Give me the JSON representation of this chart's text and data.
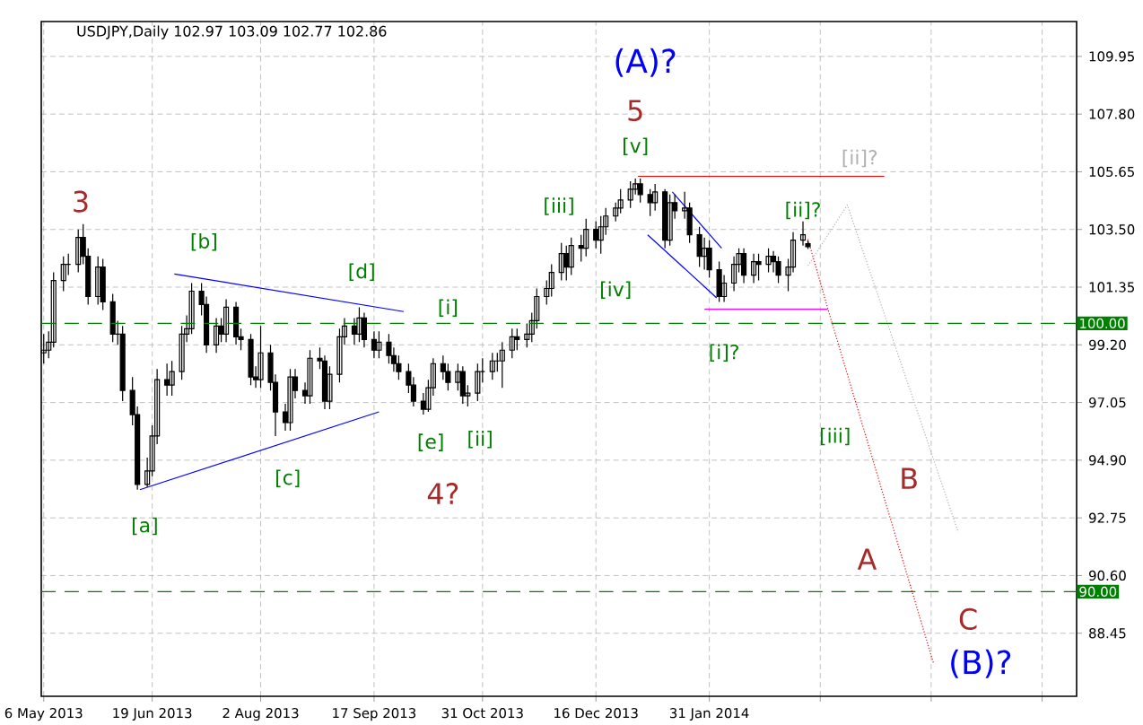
{
  "chart_data": {
    "type": "candlestick",
    "title": "USDJPY,Daily 102.97 103.09 102.77 102.86",
    "color": "#000000",
    "x": [
      "2013-05-06",
      "2013-05-08",
      "2013-05-10",
      "2013-05-14",
      "2013-05-16",
      "2013-05-20",
      "2013-05-22",
      "2013-05-24",
      "2013-05-28",
      "2013-05-30",
      "2013-06-03",
      "2013-06-05",
      "2013-06-07",
      "2013-06-11",
      "2013-06-13",
      "2013-06-17",
      "2013-06-19",
      "2013-06-21",
      "2013-06-25",
      "2013-06-27",
      "2013-07-01",
      "2013-07-03",
      "2013-07-05",
      "2013-07-09",
      "2013-07-11",
      "2013-07-15",
      "2013-07-17",
      "2013-07-19",
      "2013-07-23",
      "2013-07-25",
      "2013-07-29",
      "2013-07-31",
      "2013-08-02",
      "2013-08-06",
      "2013-08-08",
      "2013-08-12",
      "2013-08-14",
      "2013-08-16",
      "2013-08-20",
      "2013-08-22",
      "2013-08-26",
      "2013-08-28",
      "2013-08-30",
      "2013-09-03",
      "2013-09-05",
      "2013-09-09",
      "2013-09-11",
      "2013-09-13",
      "2013-09-17",
      "2013-09-19",
      "2013-09-23",
      "2013-09-25",
      "2013-09-27",
      "2013-10-01",
      "2013-10-03",
      "2013-10-07",
      "2013-10-09",
      "2013-10-11",
      "2013-10-15",
      "2013-10-17",
      "2013-10-21",
      "2013-10-23",
      "2013-10-25",
      "2013-10-29",
      "2013-10-31",
      "2013-11-04",
      "2013-11-06",
      "2013-11-08",
      "2013-11-12",
      "2013-11-14",
      "2013-11-18",
      "2013-11-20",
      "2013-11-22",
      "2013-11-26",
      "2013-11-28",
      "2013-12-02",
      "2013-12-04",
      "2013-12-06",
      "2013-12-10",
      "2013-12-12",
      "2013-12-16",
      "2013-12-18",
      "2013-12-20",
      "2013-12-24",
      "2013-12-26",
      "2013-12-30",
      "2014-01-01",
      "2014-01-03",
      "2014-01-07",
      "2014-01-09",
      "2014-01-13",
      "2014-01-15",
      "2014-01-17",
      "2014-01-21",
      "2014-01-23",
      "2014-01-27",
      "2014-01-29",
      "2014-01-31",
      "2014-02-04",
      "2014-02-06",
      "2014-02-10",
      "2014-02-12",
      "2014-02-14",
      "2014-02-18",
      "2014-02-20",
      "2014-02-24",
      "2014-02-26",
      "2014-02-28",
      "2014-03-04",
      "2014-03-06",
      "2014-03-10",
      "2014-03-12"
    ],
    "ohlc": [
      [
        98.9,
        99.6,
        98.5,
        99.0
      ],
      [
        99.0,
        99.7,
        98.7,
        99.3
      ],
      [
        99.3,
        101.9,
        99.1,
        101.6
      ],
      [
        101.6,
        102.5,
        101.2,
        102.2
      ],
      [
        102.2,
        102.6,
        101.8,
        102.2
      ],
      [
        102.2,
        103.5,
        101.9,
        103.2
      ],
      [
        103.2,
        103.7,
        102.2,
        102.5
      ],
      [
        102.5,
        102.8,
        100.7,
        101.0
      ],
      [
        101.0,
        102.5,
        100.7,
        102.1
      ],
      [
        102.1,
        102.4,
        100.5,
        100.8
      ],
      [
        100.8,
        101.1,
        99.3,
        99.6
      ],
      [
        99.6,
        100.1,
        99.2,
        99.6
      ],
      [
        99.6,
        99.9,
        97.1,
        97.5
      ],
      [
        97.5,
        98.0,
        96.2,
        96.6
      ],
      [
        96.6,
        96.9,
        93.8,
        94.0
      ],
      [
        94.0,
        95.0,
        93.9,
        94.5
      ],
      [
        94.5,
        96.2,
        94.3,
        95.8
      ],
      [
        95.8,
        98.3,
        95.5,
        97.9
      ],
      [
        97.9,
        98.5,
        97.3,
        97.7
      ],
      [
        97.7,
        98.6,
        97.3,
        98.2
      ],
      [
        98.2,
        99.9,
        97.9,
        99.6
      ],
      [
        99.6,
        100.3,
        99.3,
        99.8
      ],
      [
        99.8,
        101.5,
        99.6,
        101.2
      ],
      [
        101.2,
        101.5,
        100.3,
        100.7
      ],
      [
        100.7,
        101.0,
        98.9,
        99.2
      ],
      [
        99.2,
        100.2,
        98.9,
        99.9
      ],
      [
        99.9,
        100.2,
        99.3,
        99.6
      ],
      [
        99.6,
        100.9,
        99.3,
        100.6
      ],
      [
        100.6,
        100.8,
        99.2,
        99.5
      ],
      [
        99.5,
        99.8,
        99.0,
        99.4
      ],
      [
        99.4,
        99.6,
        97.7,
        98.0
      ],
      [
        98.0,
        98.4,
        97.6,
        97.9
      ],
      [
        97.9,
        99.9,
        97.6,
        98.9
      ],
      [
        98.9,
        99.2,
        97.5,
        97.8
      ],
      [
        97.8,
        98.1,
        95.8,
        96.7
      ],
      [
        96.7,
        97.0,
        96.0,
        96.3
      ],
      [
        96.3,
        98.3,
        96.0,
        98.0
      ],
      [
        98.0,
        98.3,
        97.2,
        97.5
      ],
      [
        97.5,
        97.8,
        97.0,
        97.3
      ],
      [
        97.3,
        99.0,
        97.0,
        98.7
      ],
      [
        98.7,
        99.1,
        98.3,
        98.6
      ],
      [
        98.6,
        98.8,
        96.8,
        97.1
      ],
      [
        97.1,
        98.4,
        96.8,
        98.1
      ],
      [
        98.1,
        99.8,
        97.8,
        99.5
      ],
      [
        99.5,
        100.2,
        99.2,
        99.9
      ],
      [
        99.9,
        100.2,
        99.2,
        99.6
      ],
      [
        99.6,
        100.6,
        99.3,
        100.2
      ],
      [
        100.2,
        100.4,
        99.1,
        99.4
      ],
      [
        99.4,
        99.7,
        98.7,
        99.0
      ],
      [
        99.0,
        99.7,
        98.7,
        99.3
      ],
      [
        99.3,
        99.6,
        98.5,
        98.8
      ],
      [
        98.8,
        99.1,
        98.2,
        98.5
      ],
      [
        98.5,
        98.8,
        97.9,
        98.2
      ],
      [
        98.2,
        98.5,
        97.4,
        97.7
      ],
      [
        97.7,
        98.0,
        96.9,
        97.1
      ],
      [
        97.1,
        97.4,
        96.6,
        96.8
      ],
      [
        96.8,
        97.9,
        96.7,
        97.6
      ],
      [
        97.6,
        98.7,
        97.3,
        98.5
      ],
      [
        98.5,
        98.8,
        97.9,
        98.2
      ],
      [
        98.2,
        98.5,
        97.5,
        97.8
      ],
      [
        97.8,
        98.5,
        97.5,
        98.2
      ],
      [
        98.2,
        98.4,
        97.0,
        97.3
      ],
      [
        97.3,
        97.7,
        96.9,
        97.4
      ],
      [
        97.4,
        98.5,
        97.1,
        98.2
      ],
      [
        98.2,
        98.7,
        97.8,
        98.2
      ],
      [
        98.2,
        98.9,
        97.9,
        98.6
      ],
      [
        98.6,
        98.9,
        98.2,
        98.6
      ],
      [
        98.6,
        99.3,
        97.6,
        99.0
      ],
      [
        99.0,
        99.8,
        98.7,
        99.5
      ],
      [
        99.5,
        99.8,
        99.0,
        99.4
      ],
      [
        99.4,
        100.0,
        99.1,
        99.6
      ],
      [
        99.6,
        100.4,
        99.3,
        100.1
      ],
      [
        100.1,
        101.3,
        99.8,
        101.0
      ],
      [
        101.0,
        101.6,
        100.7,
        101.3
      ],
      [
        101.3,
        102.2,
        101.0,
        101.9
      ],
      [
        101.9,
        103.0,
        101.6,
        102.6
      ],
      [
        102.6,
        102.9,
        101.6,
        102.1
      ],
      [
        102.1,
        103.2,
        101.8,
        102.9
      ],
      [
        102.9,
        103.3,
        102.3,
        102.8
      ],
      [
        102.8,
        103.9,
        102.5,
        103.5
      ],
      [
        103.5,
        103.8,
        102.8,
        103.1
      ],
      [
        103.1,
        104.0,
        102.6,
        103.6
      ],
      [
        103.6,
        104.3,
        103.3,
        104.0
      ],
      [
        104.0,
        104.5,
        103.8,
        104.3
      ],
      [
        104.3,
        105.0,
        104.1,
        104.6
      ],
      [
        104.6,
        105.3,
        104.3,
        105.0
      ],
      [
        105.0,
        105.4,
        104.8,
        105.2
      ],
      [
        105.2,
        105.4,
        104.5,
        104.8
      ],
      [
        104.8,
        105.0,
        104.0,
        104.5
      ],
      [
        104.5,
        105.2,
        104.2,
        104.9
      ],
      [
        104.9,
        105.0,
        102.8,
        103.1
      ],
      [
        103.1,
        104.8,
        102.9,
        104.5
      ],
      [
        104.5,
        104.8,
        103.9,
        104.2
      ],
      [
        104.2,
        104.9,
        103.9,
        104.3
      ],
      [
        104.3,
        104.5,
        103.0,
        103.3
      ],
      [
        103.3,
        103.6,
        102.1,
        102.5
      ],
      [
        102.5,
        103.2,
        102.0,
        102.8
      ],
      [
        102.8,
        103.1,
        101.7,
        102.0
      ],
      [
        102.0,
        102.3,
        100.8,
        101.0
      ],
      [
        101.0,
        101.8,
        100.8,
        101.5
      ],
      [
        101.5,
        102.5,
        101.2,
        102.2
      ],
      [
        102.2,
        102.8,
        101.9,
        102.6
      ],
      [
        102.6,
        102.8,
        101.5,
        101.8
      ],
      [
        101.8,
        102.6,
        101.5,
        102.3
      ],
      [
        102.3,
        102.6,
        101.6,
        102.2
      ],
      [
        102.2,
        102.8,
        101.9,
        102.5
      ],
      [
        102.5,
        102.7,
        101.9,
        102.3
      ],
      [
        102.3,
        102.5,
        101.5,
        101.8
      ],
      [
        101.8,
        102.4,
        101.2,
        102.1
      ],
      [
        102.1,
        103.4,
        101.9,
        103.1
      ],
      [
        103.1,
        103.8,
        102.9,
        103.3
      ],
      [
        102.97,
        103.09,
        102.77,
        102.86
      ]
    ],
    "series": [
      {
        "type": "line",
        "color": "#0000ff",
        "line_style": "solid",
        "x": [
          "2013-06-28",
          "2013-09-29"
        ],
        "values": [
          101.84,
          100.44
        ]
      },
      {
        "type": "line",
        "color": "#0000ff",
        "line_style": "solid",
        "x": [
          "2013-06-14",
          "2013-09-19"
        ],
        "values": [
          93.8,
          96.7
        ]
      },
      {
        "type": "line",
        "color": "#0000ff",
        "line_style": "solid",
        "x": [
          "2014-01-16",
          "2014-02-05"
        ],
        "values": [
          104.9,
          102.8
        ]
      },
      {
        "type": "line",
        "color": "#0000ff",
        "line_style": "solid",
        "x": [
          "2014-01-06",
          "2014-02-03"
        ],
        "values": [
          103.3,
          100.95
        ]
      },
      {
        "type": "line",
        "color": "#ff0000",
        "line_style": "solid",
        "x": [
          "2014-01-02",
          "2014-04-12"
        ],
        "values": [
          105.48,
          105.48
        ]
      },
      {
        "type": "line",
        "color": "#ff00ff",
        "line_style": "solid",
        "x": [
          "2014-01-29",
          "2014-03-20"
        ],
        "values": [
          100.53,
          100.53
        ]
      },
      {
        "type": "line",
        "color": "#ff0000",
        "line_style": "dotted",
        "x": [
          "2014-03-12",
          "2014-03-20",
          "2014-05-02"
        ],
        "values": [
          103.14,
          100.57,
          87.31
        ]
      },
      {
        "type": "line",
        "color": "#b0b0b0",
        "line_style": "dotted",
        "x": [
          "2014-03-12",
          "2014-03-28",
          "2014-05-12"
        ],
        "values": [
          102.15,
          104.41,
          92.21
        ]
      }
    ],
    "ref_lines": [
      {
        "axis": "y",
        "value": 100,
        "label": "100.00",
        "color": "#008000",
        "line_style": "dashed"
      },
      {
        "axis": "y",
        "value": 90,
        "label": "90.00",
        "color": "#008000",
        "line_style": "dashed"
      }
    ],
    "annotations": [
      "3",
      "[a]",
      "[b]",
      "[c]",
      "[d]",
      "[e]",
      "4?",
      "[i]",
      "[ii]",
      "[iii]",
      "[iv]",
      "[v]",
      "5",
      "(A)?",
      "[i]?",
      {
        "text": "[ii]?",
        "x": "2014-03-10",
        "y": 103.8
      },
      "[ii]?",
      "[iii]",
      "A",
      "B",
      "C",
      "(B)?"
    ],
    "xlim": [
      "2013-05-05",
      "2014-06-29"
    ],
    "ylim": [
      86.1,
      111.25
    ],
    "xticks": [
      {
        "value": "2013-05-06",
        "label": "6 May 2013"
      },
      {
        "value": "2013-06-19",
        "label": "19 Jun 2013"
      },
      {
        "value": "2013-08-02",
        "label": "2 Aug 2013"
      },
      {
        "value": "2013-09-17",
        "label": "17 Sep 2013"
      },
      {
        "value": "2013-10-31",
        "label": "31 Oct 2013"
      },
      {
        "value": "2013-12-16",
        "label": "16 Dec 2013"
      },
      {
        "value": "2014-01-31",
        "label": "31 Jan 2014"
      },
      {
        "value": "2014-03-17",
        "label": null
      },
      {
        "value": "2014-05-01",
        "label": null
      },
      {
        "value": "2014-06-15",
        "label": null
      }
    ],
    "yticks": [
      88.45,
      {
        "value": 90.6,
        "label": "90.60"
      },
      92.75,
      {
        "value": 94.9,
        "label": "94.90"
      },
      97.05,
      {
        "value": 99.2,
        "label": "99.20"
      },
      101.35,
      {
        "value": 103.5,
        "label": "103.50"
      },
      105.65,
      {
        "value": 107.8,
        "label": "107.80"
      },
      109.95
    ],
    "grid": true
  }
}
